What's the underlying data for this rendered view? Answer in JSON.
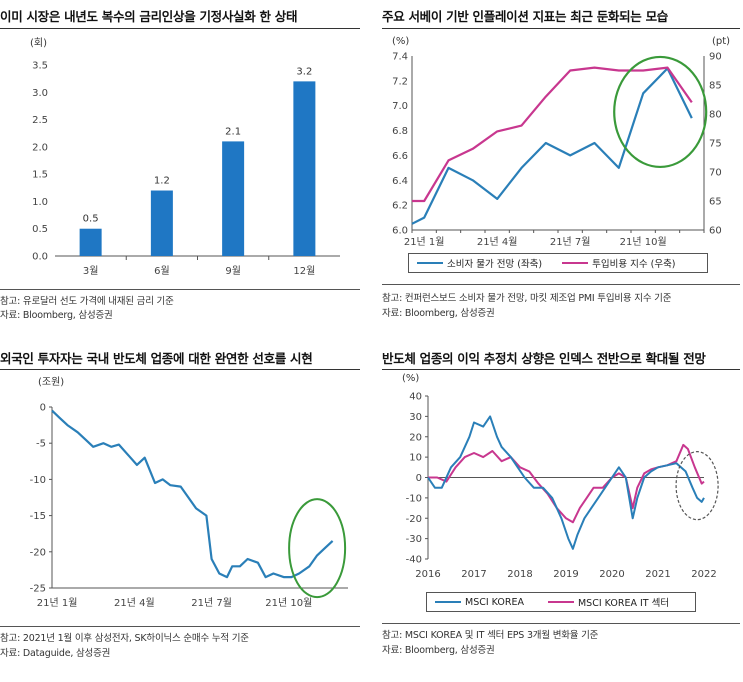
{
  "panels": {
    "p1": {
      "title": "이미 시장은 내년도 복수의 금리인상을 기정사실화 한 상태",
      "note1": "참고: 유로달러 선도 가격에 내재된 금리 기준",
      "note2": "자료: Bloomberg, 삼성증권"
    },
    "p2": {
      "title": "주요 서베이 기반 인플레이션 지표는 최근 둔화되는 모습",
      "note1": "참고: 컨퍼런스보드 소비자 물가 전망, 마킷 제조업 PMI 투입비용 지수 기준",
      "note2": "자료: Bloomberg, 삼성증권"
    },
    "p3": {
      "title": "외국인 투자자는 국내 반도체 업종에 대한 완연한 선호를 시현",
      "note1": "참고: 2021년 1월 이후 삼성전자, SK하이닉스 순매수 누적 기준",
      "note2": "자료: Dataguide, 삼성증권"
    },
    "p4": {
      "title": "반도체 업종의 이익 추정치 상향은 인덱스 전반으로 확대될 전망",
      "note1": "참고: MSCI KOREA 및 IT 섹터 EPS 3개월 변화율 기준",
      "note2": "자료: Bloomberg, 삼성증권"
    }
  },
  "colors": {
    "blue": "#1f77c4",
    "line_blue": "#2a7fb8",
    "pink": "#c8378f",
    "highlight": "#3a9a3a",
    "axis": "#555555",
    "grid": "#dddddd"
  },
  "chart_data": [
    {
      "type": "bar",
      "unit_label": "(회)",
      "categories": [
        "3월",
        "6월",
        "9월",
        "12월"
      ],
      "values": [
        0.5,
        1.2,
        2.1,
        3.2
      ],
      "data_labels": [
        "0.5",
        "1.2",
        "2.1",
        "3.2"
      ],
      "ylim": [
        0,
        3.5
      ],
      "yticks": [
        "0.0",
        "0.5",
        "1.0",
        "1.5",
        "2.0",
        "2.5",
        "3.0",
        "3.5"
      ],
      "grid": false
    },
    {
      "type": "line",
      "left_unit": "(%)",
      "right_unit": "(pt)",
      "x_ticks": [
        "21년 1월",
        "21년 4월",
        "21년 7월",
        "21년 10월"
      ],
      "left_ylim": [
        6.0,
        7.4
      ],
      "left_yticks": [
        "6.0",
        "6.2",
        "6.4",
        "6.6",
        "6.8",
        "7.0",
        "7.2",
        "7.4"
      ],
      "right_ylim": [
        60,
        90
      ],
      "right_yticks": [
        "60",
        "65",
        "70",
        "75",
        "80",
        "85",
        "90"
      ],
      "series": [
        {
          "name": "소비자 물가 전망 (좌축)",
          "axis": "left",
          "color": "#2a7fb8",
          "x": [
            0.0,
            0.5,
            1.5,
            2.5,
            3.5,
            4.5,
            5.5,
            6.5,
            7.5,
            8.5,
            9.5,
            10.5,
            11.5
          ],
          "values": [
            6.05,
            6.1,
            6.5,
            6.4,
            6.25,
            6.5,
            6.7,
            6.6,
            6.7,
            6.5,
            7.1,
            7.3,
            6.9
          ]
        },
        {
          "name": "투입비용 지수 (우축)",
          "axis": "right",
          "color": "#c8378f",
          "x": [
            0.0,
            0.5,
            1.5,
            2.5,
            3.5,
            4.5,
            5.5,
            6.5,
            7.5,
            8.5,
            9.5,
            10.5,
            11.5
          ],
          "values": [
            65,
            65,
            72,
            74,
            77,
            78,
            83,
            87.5,
            88,
            87.5,
            87.5,
            88,
            82
          ]
        }
      ],
      "legend": "bottom",
      "highlight": "ellipse around latest months"
    },
    {
      "type": "line",
      "unit_label": "(조원)",
      "x_ticks": [
        "21년 1월",
        "21년 4월",
        "21년 7월",
        "21년 10월"
      ],
      "ylim": [
        -25,
        0
      ],
      "yticks": [
        "0",
        "-5",
        "-10",
        "-15",
        "-20",
        "-25"
      ],
      "series": [
        {
          "color": "#2a7fb8",
          "x": [
            0,
            0.3,
            0.6,
            1.0,
            1.3,
            1.6,
            2.0,
            2.3,
            2.6,
            3.0,
            3.3,
            3.6,
            4.0,
            4.3,
            4.6,
            5.0,
            5.3,
            5.6,
            6.0,
            6.2,
            6.5,
            6.8,
            7.0,
            7.3,
            7.6,
            8.0,
            8.3,
            8.6,
            9.0,
            9.3,
            9.6,
            10.0,
            10.3,
            10.6,
            10.9
          ],
          "values": [
            -0.5,
            -1.5,
            -2.5,
            -3.5,
            -4.5,
            -5.5,
            -5.0,
            -5.5,
            -5.2,
            -6.8,
            -8.0,
            -7.0,
            -10.5,
            -10.0,
            -10.8,
            -11.0,
            -12.5,
            -14.0,
            -15.0,
            -21.0,
            -23.0,
            -23.5,
            -22.0,
            -22.0,
            -21.0,
            -21.5,
            -23.5,
            -23.0,
            -23.5,
            -23.5,
            -23.0,
            -22.0,
            -20.5,
            -19.5,
            -18.5
          ]
        }
      ],
      "highlight": "ellipse around latest months"
    },
    {
      "type": "line",
      "unit_label": "(%)",
      "x_ticks": [
        "2016",
        "2017",
        "2018",
        "2019",
        "2020",
        "2021",
        "2022"
      ],
      "ylim": [
        -40,
        40
      ],
      "yticks": [
        "40",
        "30",
        "20",
        "10",
        "0",
        "-10",
        "-20",
        "-30",
        "-40"
      ],
      "series": [
        {
          "name": "MSCI KOREA",
          "color": "#2a7fb8",
          "x": [
            2016.0,
            2016.15,
            2016.3,
            2016.5,
            2016.7,
            2016.9,
            2017.0,
            2017.2,
            2017.35,
            2017.5,
            2017.6,
            2017.8,
            2017.95,
            2018.1,
            2018.3,
            2018.5,
            2018.7,
            2018.9,
            2019.05,
            2019.15,
            2019.25,
            2019.4,
            2019.55,
            2019.7,
            2019.85,
            2020.0,
            2020.15,
            2020.3,
            2020.45,
            2020.55,
            2020.7,
            2020.85,
            2021.0,
            2021.2,
            2021.4,
            2021.6,
            2021.75,
            2021.85,
            2021.95,
            2022.0
          ],
          "values": [
            0,
            -5,
            -5,
            5,
            10,
            20,
            27,
            25,
            30,
            20,
            15,
            10,
            5,
            0,
            -5,
            -5,
            -10,
            -20,
            -30,
            -35,
            -28,
            -20,
            -15,
            -10,
            -5,
            0,
            5,
            0,
            -20,
            -10,
            0,
            3,
            5,
            6,
            7,
            3,
            -5,
            -10,
            -12,
            -10
          ]
        },
        {
          "name": "MSCI KOREA IT 섹터",
          "color": "#c8378f",
          "x": [
            2016.0,
            2016.2,
            2016.4,
            2016.6,
            2016.8,
            2017.0,
            2017.2,
            2017.4,
            2017.6,
            2017.8,
            2018.0,
            2018.2,
            2018.4,
            2018.6,
            2018.8,
            2019.0,
            2019.15,
            2019.3,
            2019.45,
            2019.6,
            2019.8,
            2020.0,
            2020.15,
            2020.3,
            2020.45,
            2020.55,
            2020.7,
            2020.85,
            2021.0,
            2021.2,
            2021.4,
            2021.55,
            2021.65,
            2021.8,
            2021.95,
            2022.0
          ],
          "values": [
            0,
            0,
            -2,
            5,
            10,
            12,
            10,
            13,
            8,
            10,
            5,
            3,
            -3,
            -8,
            -15,
            -20,
            -22,
            -15,
            -10,
            -5,
            -5,
            0,
            2,
            0,
            -15,
            -5,
            2,
            4,
            5,
            6,
            8,
            16,
            14,
            5,
            -3,
            -2
          ]
        }
      ],
      "legend": "bottom",
      "highlight": "dashed ellipse around latest period"
    }
  ]
}
